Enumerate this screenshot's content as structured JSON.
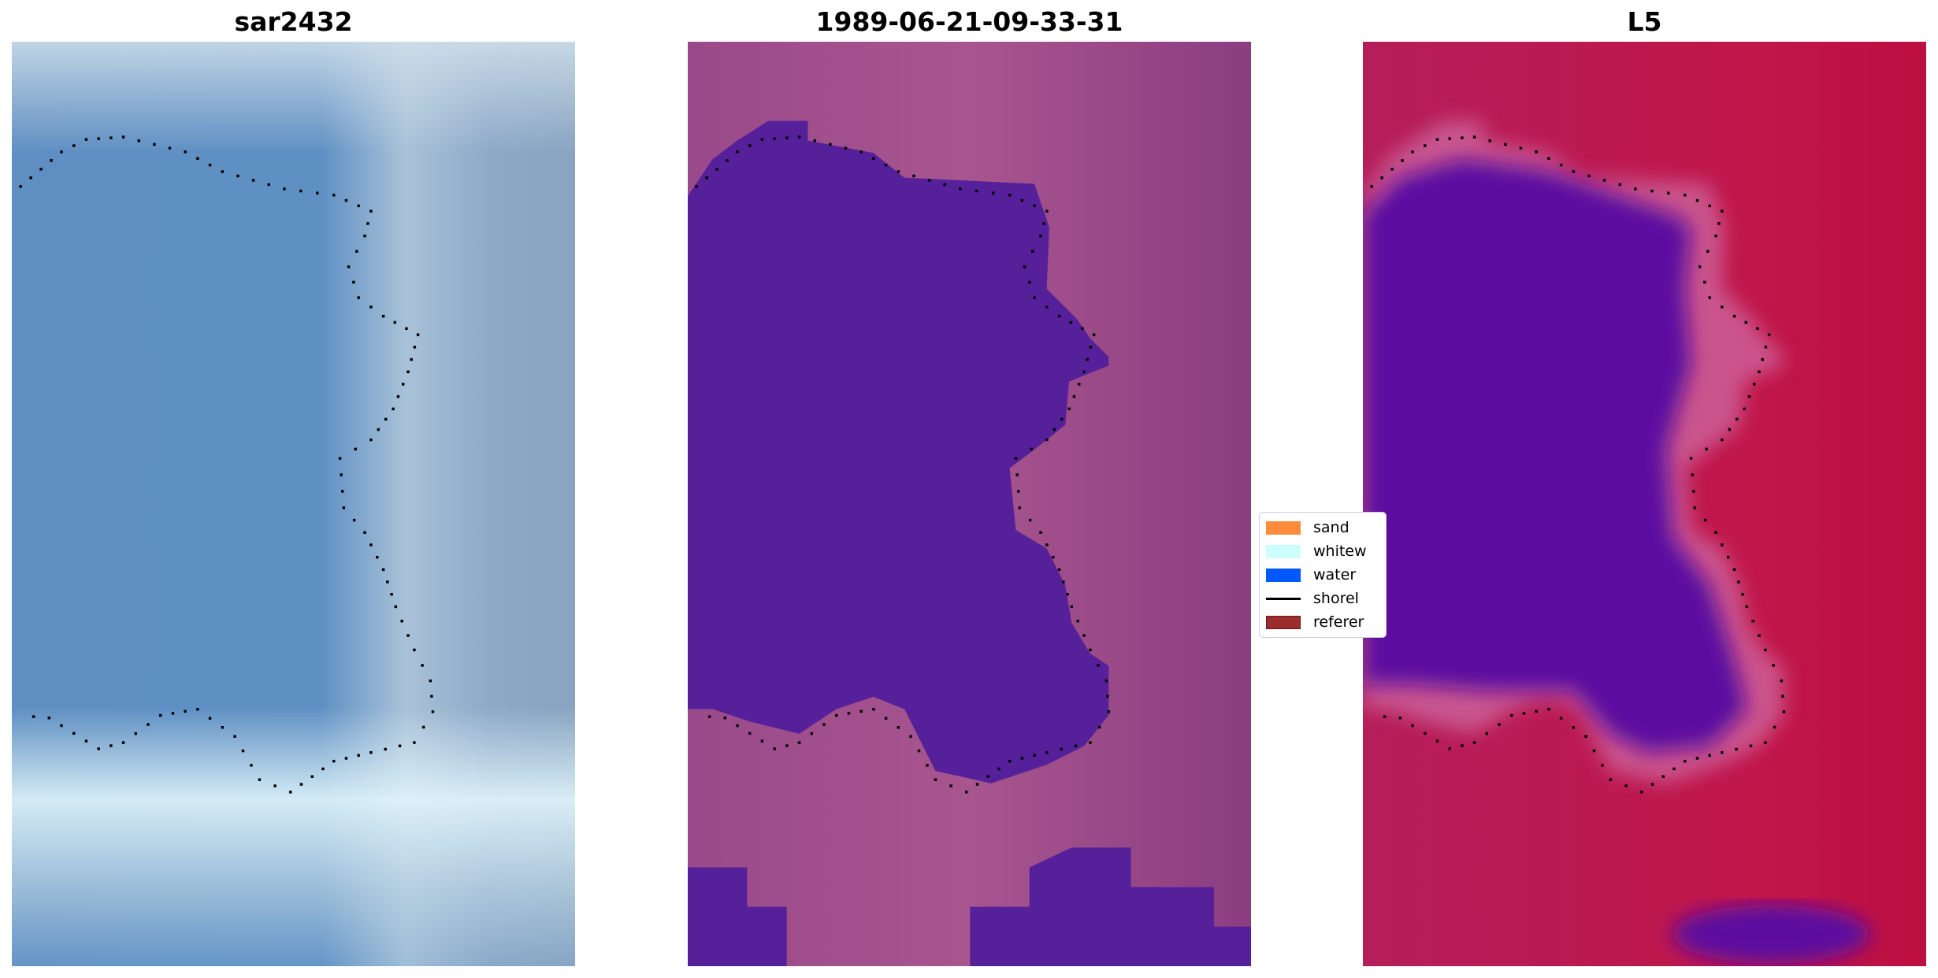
{
  "chart_data": [
    {
      "type": "heatmap",
      "title": "sar2432",
      "axes": "off",
      "features": [
        "shoreline (dotted)"
      ]
    },
    {
      "type": "heatmap",
      "title": "1989-06-21-09-33-31",
      "axes": "off",
      "features": [
        "water mask",
        "shoreline (dotted)"
      ]
    },
    {
      "type": "heatmap",
      "title": "L5",
      "axes": "off",
      "features": [
        "shoreline (dotted)"
      ]
    }
  ],
  "legend": {
    "placement": "center, between second and third panel (clipped)",
    "items": [
      {
        "label": "sand",
        "color": "#ff8c3c"
      },
      {
        "label": "whitew",
        "color": "#ccffff"
      },
      {
        "label": "water",
        "color": "#0059ff"
      },
      {
        "label": "shorel",
        "color": "#000000"
      },
      {
        "label": "referer",
        "color": "#9b2d2d"
      }
    ]
  },
  "colors": {
    "water_mask": "#55209a",
    "l5_water": "#5c0ea0",
    "l5_land": "#c0164a"
  }
}
